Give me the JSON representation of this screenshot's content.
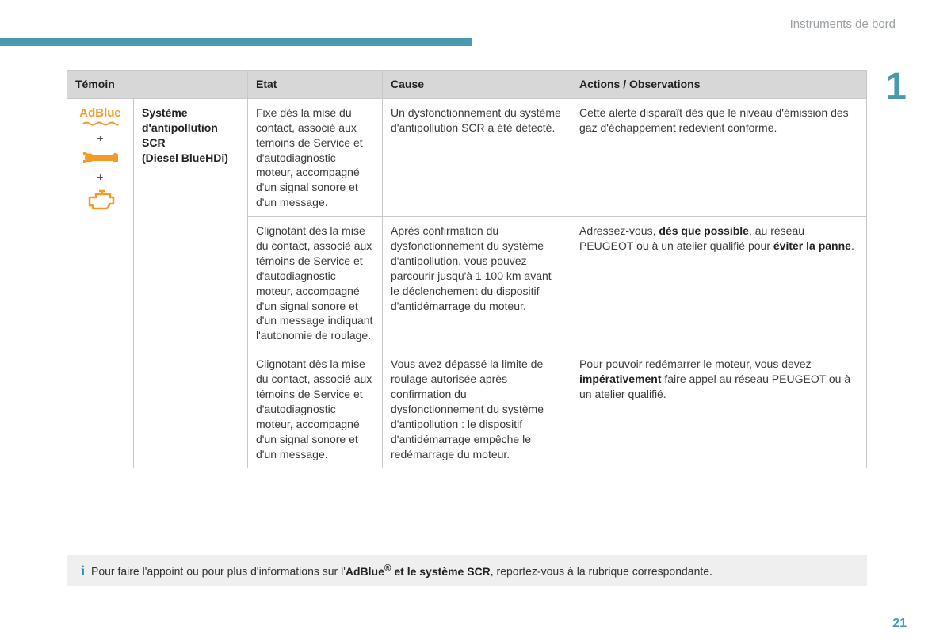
{
  "page": {
    "section_label": "Instruments de bord",
    "chapter_number": "1",
    "page_number": "21"
  },
  "colors": {
    "accent": "#4a9aaf",
    "icon_orange": "#f39a27",
    "header_bg": "#d7d7d7",
    "border": "#c8c8c8",
    "note_bg": "#efefef"
  },
  "table": {
    "headers": {
      "temoin": "Témoin",
      "etat": "Etat",
      "cause": "Cause",
      "actions": "Actions / Observations"
    },
    "indicator": {
      "adblue_label": "AdBlue",
      "plus": "+",
      "system_name_l1": "Système d'antipollution SCR",
      "system_name_l2": "(Diesel BlueHDi)"
    },
    "rows": [
      {
        "etat": "Fixe dès la mise du contact, associé aux témoins de Service et d'autodiagnostic moteur, accompagné d'un signal sonore et d'un message.",
        "cause": "Un dysfonctionnement du système d'antipollution SCR a été détecté.",
        "actions_html": "Cette alerte disparaît dès que le niveau d'émission des gaz d'échappement redevient conforme."
      },
      {
        "etat": "Clignotant dès la mise du contact, associé aux témoins de Service et d'autodiagnostic moteur, accompagné d'un signal sonore et d'un message indiquant l'autonomie de roulage.",
        "cause": "Après confirmation du dysfonctionnement du système d'antipollution, vous pouvez parcourir jusqu'à 1 100 km avant le déclenchement du dispositif d'antidémarrage du moteur.",
        "actions_html": "Adressez-vous, <b>dès que possible</b>, au réseau PEUGEOT ou à un atelier qualifié pour <b>éviter la panne</b>."
      },
      {
        "etat": "Clignotant dès la mise du contact, associé aux témoins de Service et d'autodiagnostic moteur, accompagné d'un signal sonore et d'un message.",
        "cause": "Vous avez dépassé la limite de roulage autorisée après confirmation du dysfonctionnement du système d'antipollution : le dispositif d'antidémarrage empêche le redémarrage du moteur.",
        "actions_html": "Pour pouvoir redémarrer le moteur, vous devez <b>impérativement</b> faire appel au réseau PEUGEOT ou à un atelier qualifié."
      }
    ]
  },
  "note": {
    "text_html": "Pour faire l'appoint ou pour plus d'informations sur l'<b>AdBlue<sup>®</sup> et le système SCR</b>, reportez-vous à la rubrique correspondante."
  }
}
